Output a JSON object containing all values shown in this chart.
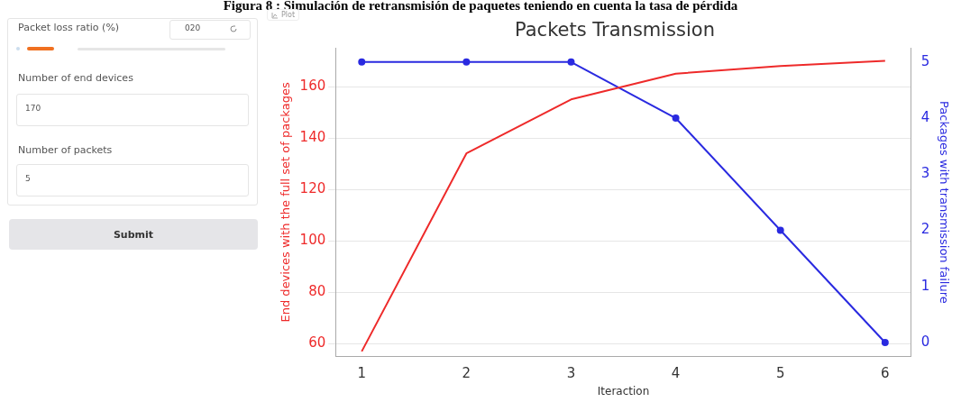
{
  "chart_data": {
    "type": "line",
    "title": "Packets Transmission",
    "xlabel": "Iteraction",
    "ylabel": "End devices with the full set of packages",
    "y2label": "Packages with transmission failure",
    "x": [
      1,
      2,
      3,
      4,
      5,
      6
    ],
    "series": [
      {
        "color": "#ee2a2a",
        "values": [
          57,
          134,
          155,
          165,
          168,
          170
        ],
        "marker": "none"
      },
      {
        "color": "#2a2ae0",
        "values": [
          5,
          5,
          5,
          4,
          2,
          0
        ],
        "axis": "y2",
        "marker": "circle"
      }
    ],
    "xlim": [
      0.75,
      6.25
    ],
    "xticks": [
      1,
      2,
      3,
      4,
      5,
      6
    ],
    "ylim": [
      55,
      175
    ],
    "yticks": [
      60,
      80,
      100,
      120,
      140,
      160
    ],
    "y2lim": [
      -0.25,
      5.25
    ],
    "y2ticks": [
      0,
      1,
      2,
      3,
      4,
      5
    ],
    "grid": "y",
    "annotations": [
      "Figura 8 : Simulación de retransmisión de paquetes teniendo en cuenta la tasa de pérdida",
      "Plot",
      "Packet loss ratio (%)",
      "020",
      "Number of end devices",
      "170",
      "Number of packets",
      "5",
      "Submit"
    ]
  }
}
